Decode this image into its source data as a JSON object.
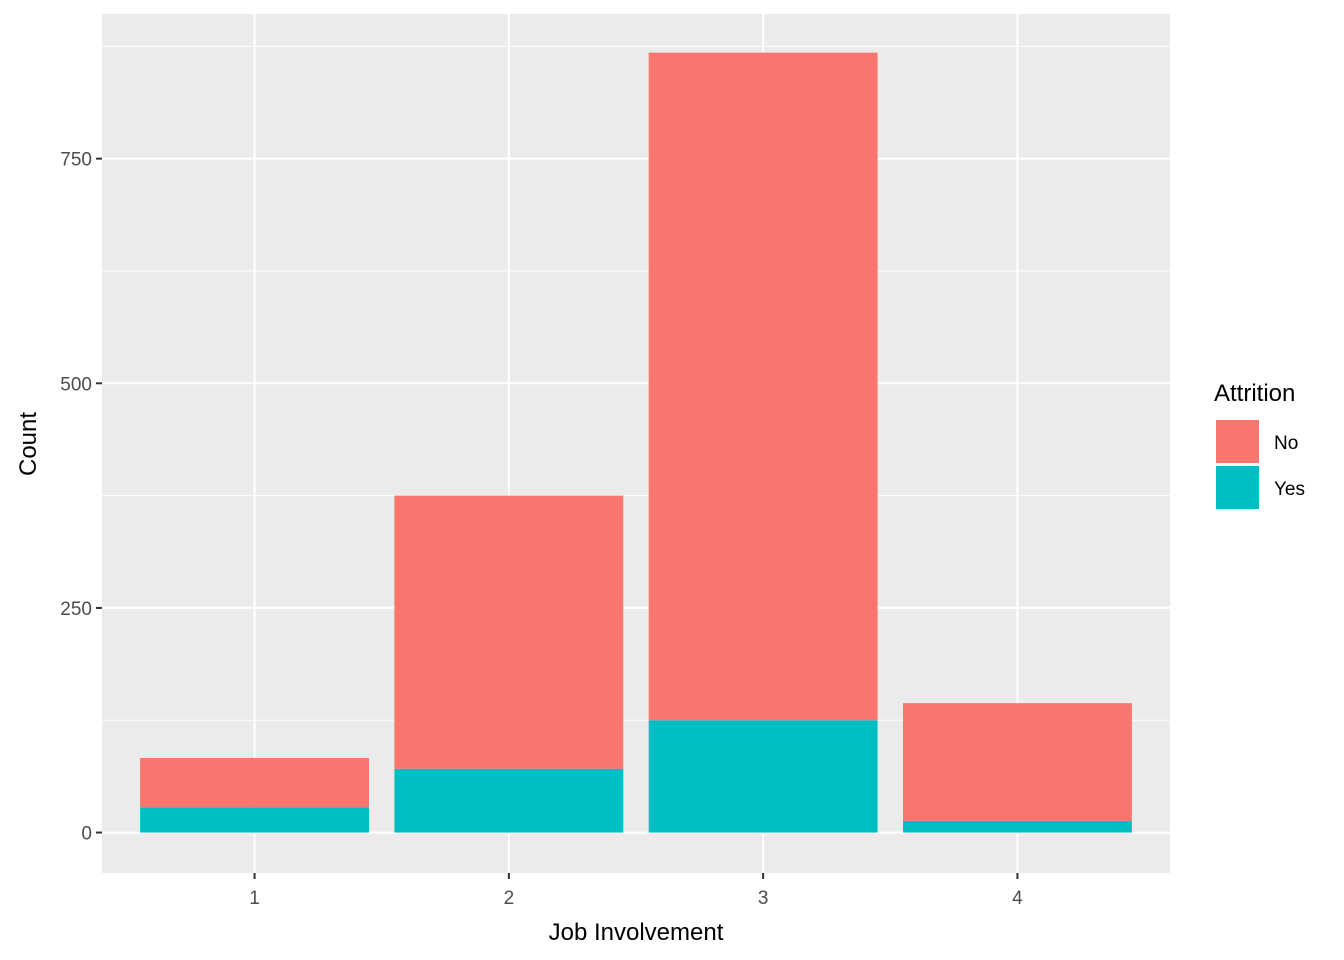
{
  "chart_data": {
    "type": "bar",
    "stacked": true,
    "categories": [
      "1",
      "2",
      "3",
      "4"
    ],
    "series": [
      {
        "name": "No",
        "values": [
          55,
          304,
          743,
          131
        ],
        "color": "#F8766D"
      },
      {
        "name": "Yes",
        "values": [
          28,
          71,
          125,
          13
        ],
        "color": "#00BFC4"
      }
    ],
    "title": "",
    "xlabel": "Job Involvement",
    "ylabel": "Count",
    "ylim": [
      -45,
      911
    ],
    "yticks": [
      0,
      250,
      500,
      750
    ],
    "ytick_labels": [
      "0",
      "250",
      "500",
      "750"
    ],
    "grid": true,
    "legend": {
      "title": "Attrition",
      "position": "right",
      "entries": [
        "No",
        "Yes"
      ]
    },
    "colors": {
      "panel_background": "#EBEBEB",
      "grid": "#FFFFFF"
    }
  }
}
